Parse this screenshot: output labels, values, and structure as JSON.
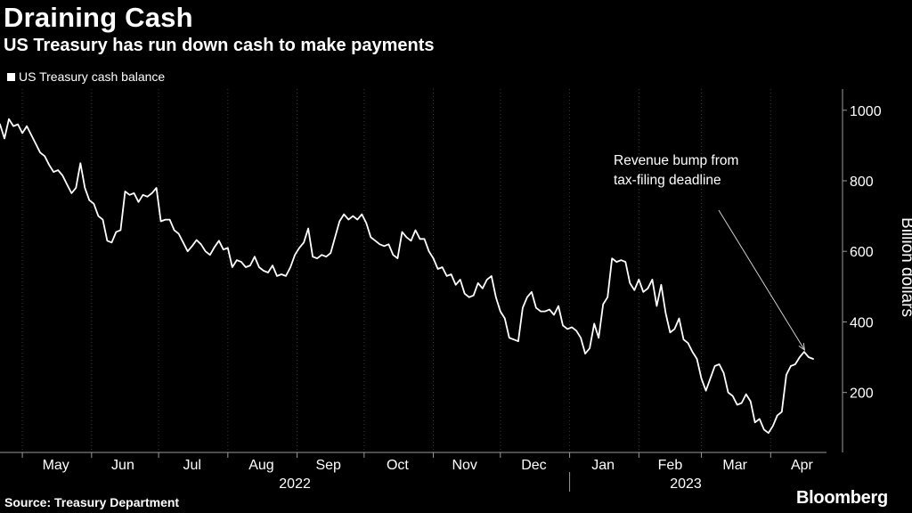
{
  "header": {
    "title": "Draining Cash",
    "subtitle": "US Treasury has run down cash to make payments"
  },
  "footer": {
    "source": "Source: Treasury Department",
    "brand": "Bloomberg"
  },
  "colors": {
    "background": "#000000",
    "line": "#ffffff",
    "grid": "#3a3a3a",
    "text": "#ffffff"
  },
  "chart_data": {
    "type": "line",
    "title": "Draining Cash",
    "subtitle": "US Treasury has run down cash to make payments",
    "ylabel": "Billion dollars",
    "ylim": [
      30,
      1060
    ],
    "yticks": [
      200,
      400,
      600,
      800,
      1000
    ],
    "y_axis_position": "right",
    "grid": "vertical dotted at month boundaries",
    "legend_position": "top-left",
    "x_range": [
      "2022-04-21",
      "2023-04-26"
    ],
    "month_labels": [
      {
        "label": "May",
        "date": "2022-05-16"
      },
      {
        "label": "Jun",
        "date": "2022-06-15"
      },
      {
        "label": "Jul",
        "date": "2022-07-16"
      },
      {
        "label": "Aug",
        "date": "2022-08-16"
      },
      {
        "label": "Sep",
        "date": "2022-09-15"
      },
      {
        "label": "Oct",
        "date": "2022-10-16"
      },
      {
        "label": "Nov",
        "date": "2022-11-15"
      },
      {
        "label": "Dec",
        "date": "2022-12-16"
      },
      {
        "label": "Jan",
        "date": "2023-01-16"
      },
      {
        "label": "Feb",
        "date": "2023-02-15"
      },
      {
        "label": "Mar",
        "date": "2023-03-16"
      },
      {
        "label": "Apr",
        "date": "2023-04-15"
      }
    ],
    "month_boundaries": [
      "2022-05-01",
      "2022-06-01",
      "2022-07-01",
      "2022-08-01",
      "2022-09-01",
      "2022-10-01",
      "2022-11-01",
      "2022-12-01",
      "2023-01-01",
      "2023-02-01",
      "2023-03-01",
      "2023-04-01"
    ],
    "year_labels": [
      {
        "label": "2022",
        "date": "2022-08-31"
      },
      {
        "label": "2023",
        "date": "2023-02-22"
      }
    ],
    "year_divider": "2023-01-01",
    "annotation": {
      "lines": [
        "Revenue bump from",
        "tax-filing deadline"
      ],
      "points_to": {
        "date": "2023-04-17",
        "value": 295
      }
    },
    "series": [
      {
        "name": "US Treasury cash balance",
        "points": [
          [
            "2022-04-21",
            960
          ],
          [
            "2022-04-23",
            920
          ],
          [
            "2022-04-25",
            975
          ],
          [
            "2022-04-27",
            955
          ],
          [
            "2022-04-29",
            960
          ],
          [
            "2022-05-01",
            935
          ],
          [
            "2022-05-03",
            955
          ],
          [
            "2022-05-05",
            930
          ],
          [
            "2022-05-07",
            905
          ],
          [
            "2022-05-09",
            880
          ],
          [
            "2022-05-11",
            870
          ],
          [
            "2022-05-13",
            845
          ],
          [
            "2022-05-15",
            825
          ],
          [
            "2022-05-17",
            830
          ],
          [
            "2022-05-19",
            815
          ],
          [
            "2022-05-21",
            790
          ],
          [
            "2022-05-23",
            765
          ],
          [
            "2022-05-25",
            780
          ],
          [
            "2022-05-27",
            850
          ],
          [
            "2022-05-29",
            780
          ],
          [
            "2022-05-31",
            745
          ],
          [
            "2022-06-02",
            735
          ],
          [
            "2022-06-04",
            700
          ],
          [
            "2022-06-06",
            690
          ],
          [
            "2022-06-08",
            630
          ],
          [
            "2022-06-10",
            625
          ],
          [
            "2022-06-12",
            655
          ],
          [
            "2022-06-14",
            660
          ],
          [
            "2022-06-16",
            770
          ],
          [
            "2022-06-18",
            760
          ],
          [
            "2022-06-20",
            765
          ],
          [
            "2022-06-22",
            740
          ],
          [
            "2022-06-24",
            760
          ],
          [
            "2022-06-26",
            755
          ],
          [
            "2022-06-28",
            765
          ],
          [
            "2022-06-30",
            780
          ],
          [
            "2022-07-02",
            685
          ],
          [
            "2022-07-04",
            690
          ],
          [
            "2022-07-06",
            690
          ],
          [
            "2022-07-08",
            660
          ],
          [
            "2022-07-10",
            650
          ],
          [
            "2022-07-12",
            625
          ],
          [
            "2022-07-14",
            600
          ],
          [
            "2022-07-16",
            615
          ],
          [
            "2022-07-18",
            632
          ],
          [
            "2022-07-20",
            620
          ],
          [
            "2022-07-22",
            600
          ],
          [
            "2022-07-24",
            590
          ],
          [
            "2022-07-26",
            612
          ],
          [
            "2022-07-28",
            630
          ],
          [
            "2022-07-30",
            605
          ],
          [
            "2022-08-01",
            610
          ],
          [
            "2022-08-03",
            555
          ],
          [
            "2022-08-05",
            575
          ],
          [
            "2022-08-07",
            570
          ],
          [
            "2022-08-09",
            555
          ],
          [
            "2022-08-11",
            560
          ],
          [
            "2022-08-13",
            585
          ],
          [
            "2022-08-15",
            555
          ],
          [
            "2022-08-17",
            545
          ],
          [
            "2022-08-19",
            540
          ],
          [
            "2022-08-21",
            560
          ],
          [
            "2022-08-23",
            530
          ],
          [
            "2022-08-25",
            535
          ],
          [
            "2022-08-27",
            530
          ],
          [
            "2022-08-29",
            555
          ],
          [
            "2022-08-31",
            590
          ],
          [
            "2022-09-02",
            610
          ],
          [
            "2022-09-04",
            625
          ],
          [
            "2022-09-06",
            665
          ],
          [
            "2022-09-08",
            585
          ],
          [
            "2022-09-10",
            580
          ],
          [
            "2022-09-12",
            590
          ],
          [
            "2022-09-14",
            585
          ],
          [
            "2022-09-16",
            595
          ],
          [
            "2022-09-18",
            640
          ],
          [
            "2022-09-20",
            685
          ],
          [
            "2022-09-22",
            705
          ],
          [
            "2022-09-24",
            690
          ],
          [
            "2022-09-26",
            700
          ],
          [
            "2022-09-28",
            690
          ],
          [
            "2022-09-30",
            705
          ],
          [
            "2022-10-02",
            680
          ],
          [
            "2022-10-04",
            640
          ],
          [
            "2022-10-06",
            630
          ],
          [
            "2022-10-08",
            620
          ],
          [
            "2022-10-10",
            615
          ],
          [
            "2022-10-12",
            620
          ],
          [
            "2022-10-14",
            590
          ],
          [
            "2022-10-16",
            580
          ],
          [
            "2022-10-18",
            655
          ],
          [
            "2022-10-20",
            640
          ],
          [
            "2022-10-22",
            630
          ],
          [
            "2022-10-24",
            660
          ],
          [
            "2022-10-26",
            635
          ],
          [
            "2022-10-28",
            635
          ],
          [
            "2022-10-30",
            600
          ],
          [
            "2022-11-01",
            580
          ],
          [
            "2022-11-03",
            550
          ],
          [
            "2022-11-05",
            555
          ],
          [
            "2022-11-07",
            530
          ],
          [
            "2022-11-09",
            535
          ],
          [
            "2022-11-11",
            505
          ],
          [
            "2022-11-13",
            520
          ],
          [
            "2022-11-15",
            480
          ],
          [
            "2022-11-17",
            470
          ],
          [
            "2022-11-19",
            475
          ],
          [
            "2022-11-21",
            510
          ],
          [
            "2022-11-23",
            495
          ],
          [
            "2022-11-25",
            520
          ],
          [
            "2022-11-27",
            530
          ],
          [
            "2022-11-29",
            470
          ],
          [
            "2022-12-01",
            430
          ],
          [
            "2022-12-03",
            410
          ],
          [
            "2022-12-05",
            355
          ],
          [
            "2022-12-07",
            350
          ],
          [
            "2022-12-09",
            345
          ],
          [
            "2022-12-11",
            440
          ],
          [
            "2022-12-13",
            470
          ],
          [
            "2022-12-15",
            485
          ],
          [
            "2022-12-17",
            440
          ],
          [
            "2022-12-19",
            430
          ],
          [
            "2022-12-21",
            430
          ],
          [
            "2022-12-23",
            435
          ],
          [
            "2022-12-25",
            420
          ],
          [
            "2022-12-27",
            445
          ],
          [
            "2022-12-29",
            390
          ],
          [
            "2022-12-31",
            380
          ],
          [
            "2023-01-02",
            385
          ],
          [
            "2023-01-04",
            375
          ],
          [
            "2023-01-06",
            355
          ],
          [
            "2023-01-08",
            310
          ],
          [
            "2023-01-10",
            325
          ],
          [
            "2023-01-12",
            395
          ],
          [
            "2023-01-14",
            355
          ],
          [
            "2023-01-16",
            450
          ],
          [
            "2023-01-18",
            470
          ],
          [
            "2023-01-20",
            580
          ],
          [
            "2023-01-22",
            570
          ],
          [
            "2023-01-24",
            575
          ],
          [
            "2023-01-26",
            570
          ],
          [
            "2023-01-28",
            510
          ],
          [
            "2023-01-30",
            490
          ],
          [
            "2023-02-01",
            520
          ],
          [
            "2023-02-03",
            485
          ],
          [
            "2023-02-05",
            495
          ],
          [
            "2023-02-07",
            520
          ],
          [
            "2023-02-09",
            445
          ],
          [
            "2023-02-11",
            505
          ],
          [
            "2023-02-13",
            425
          ],
          [
            "2023-02-15",
            370
          ],
          [
            "2023-02-17",
            380
          ],
          [
            "2023-02-19",
            410
          ],
          [
            "2023-02-21",
            350
          ],
          [
            "2023-02-23",
            340
          ],
          [
            "2023-02-25",
            315
          ],
          [
            "2023-02-27",
            295
          ],
          [
            "2023-03-01",
            240
          ],
          [
            "2023-03-03",
            205
          ],
          [
            "2023-03-05",
            240
          ],
          [
            "2023-03-07",
            275
          ],
          [
            "2023-03-09",
            280
          ],
          [
            "2023-03-11",
            255
          ],
          [
            "2023-03-13",
            200
          ],
          [
            "2023-03-15",
            190
          ],
          [
            "2023-03-17",
            165
          ],
          [
            "2023-03-19",
            170
          ],
          [
            "2023-03-21",
            195
          ],
          [
            "2023-03-23",
            175
          ],
          [
            "2023-03-25",
            115
          ],
          [
            "2023-03-27",
            125
          ],
          [
            "2023-03-29",
            95
          ],
          [
            "2023-03-31",
            85
          ],
          [
            "2023-04-02",
            105
          ],
          [
            "2023-04-04",
            135
          ],
          [
            "2023-04-06",
            145
          ],
          [
            "2023-04-08",
            250
          ],
          [
            "2023-04-10",
            275
          ],
          [
            "2023-04-12",
            280
          ],
          [
            "2023-04-14",
            300
          ],
          [
            "2023-04-16",
            315
          ],
          [
            "2023-04-18",
            300
          ],
          [
            "2023-04-20",
            295
          ]
        ]
      }
    ]
  }
}
